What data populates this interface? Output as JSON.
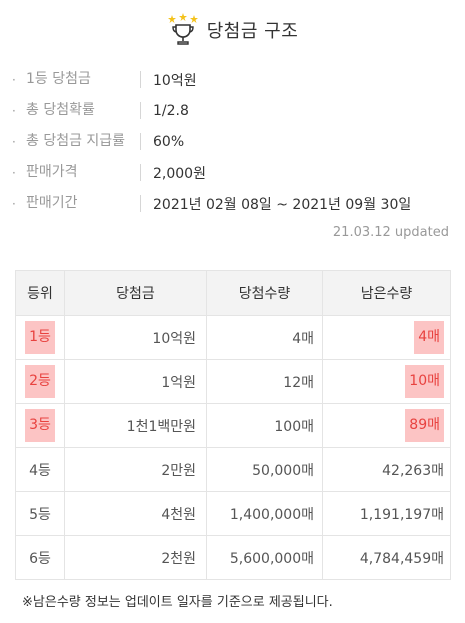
{
  "header": {
    "icon": "trophy-icon",
    "title": "당첨금 구조"
  },
  "info": [
    {
      "label": "1등 당첨금",
      "value": "10억원"
    },
    {
      "label": "총 당첨확률",
      "value": "1/2.8"
    },
    {
      "label": "총 당첨금 지급률",
      "value": "60%"
    },
    {
      "label": "판매가격",
      "value": "2,000원"
    },
    {
      "label": "판매기간",
      "value": "2021년 02월 08일 ~ 2021년 09월 30일"
    }
  ],
  "updated": "21.03.12 updated",
  "table": {
    "headers": [
      "등위",
      "당첨금",
      "당첨수량",
      "남은수량"
    ],
    "rows": [
      {
        "rank": "1등",
        "amount": "10억원",
        "count": "4매",
        "remaining": "4매",
        "highlight": true
      },
      {
        "rank": "2등",
        "amount": "1억원",
        "count": "12매",
        "remaining": "10매",
        "highlight": true
      },
      {
        "rank": "3등",
        "amount": "1천1백만원",
        "count": "100매",
        "remaining": "89매",
        "highlight": true
      },
      {
        "rank": "4등",
        "amount": "2만원",
        "count": "50,000매",
        "remaining": "42,263매",
        "highlight": false
      },
      {
        "rank": "5등",
        "amount": "4천원",
        "count": "1,400,000매",
        "remaining": "1,191,197매",
        "highlight": false
      },
      {
        "rank": "6등",
        "amount": "2천원",
        "count": "5,600,000매",
        "remaining": "4,784,459매",
        "highlight": false
      }
    ]
  },
  "note": "※남은수량 정보는 업데이트 일자를 기준으로 제공됩니다.",
  "colors": {
    "highlight_bg": "#fcc4c4",
    "highlight_text": "#e8423f",
    "trophy": "#f4c21b"
  }
}
